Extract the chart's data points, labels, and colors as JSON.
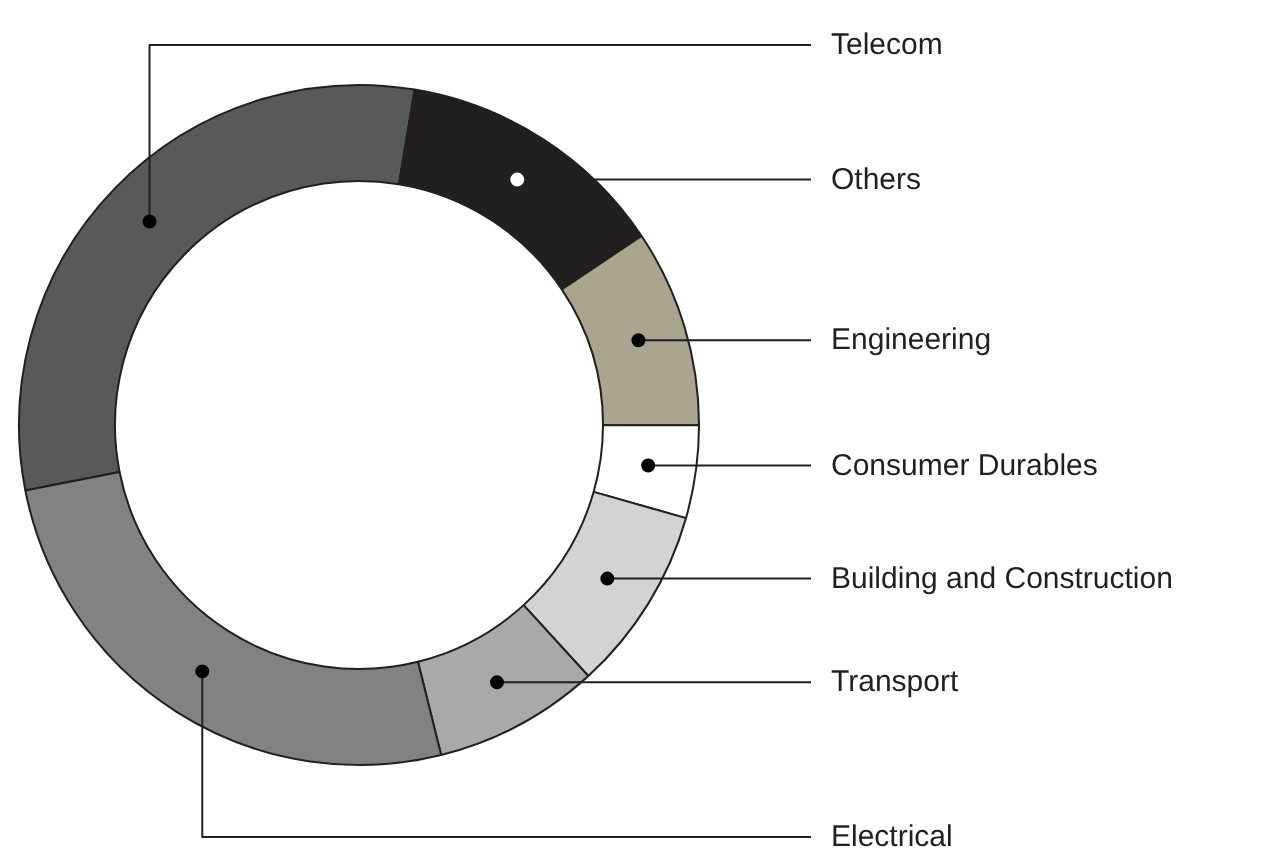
{
  "chart_data": {
    "type": "donut",
    "categories": [
      "Telecom",
      "Others",
      "Engineering",
      "Consumer Durables",
      "Building and Construction",
      "Transport",
      "Electrical"
    ],
    "values": [
      30.7,
      13.0,
      9.4,
      4.4,
      8.8,
      7.9,
      25.8
    ],
    "colors": [
      "#58595b",
      "#231f20",
      "#a9a58e",
      "#ffffff",
      "#d1d3d4",
      "#a7a9ac",
      "#808285"
    ]
  }
}
